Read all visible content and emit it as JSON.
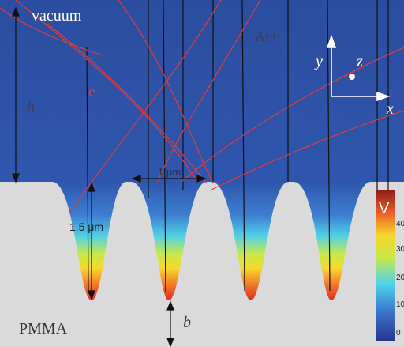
{
  "labels": {
    "vacuum": "vacuum",
    "ion": "Ar+",
    "electron": "e",
    "height": "h",
    "axis_y": "y",
    "axis_z": "z",
    "axis_x": "x",
    "pitch": "1 μm",
    "depth": "1.5 μm",
    "substrate": "PMMA",
    "bottom": "b"
  },
  "colorbar": {
    "title": "V",
    "ticks": [
      "40",
      "30",
      "20",
      "10",
      "0"
    ]
  }
}
